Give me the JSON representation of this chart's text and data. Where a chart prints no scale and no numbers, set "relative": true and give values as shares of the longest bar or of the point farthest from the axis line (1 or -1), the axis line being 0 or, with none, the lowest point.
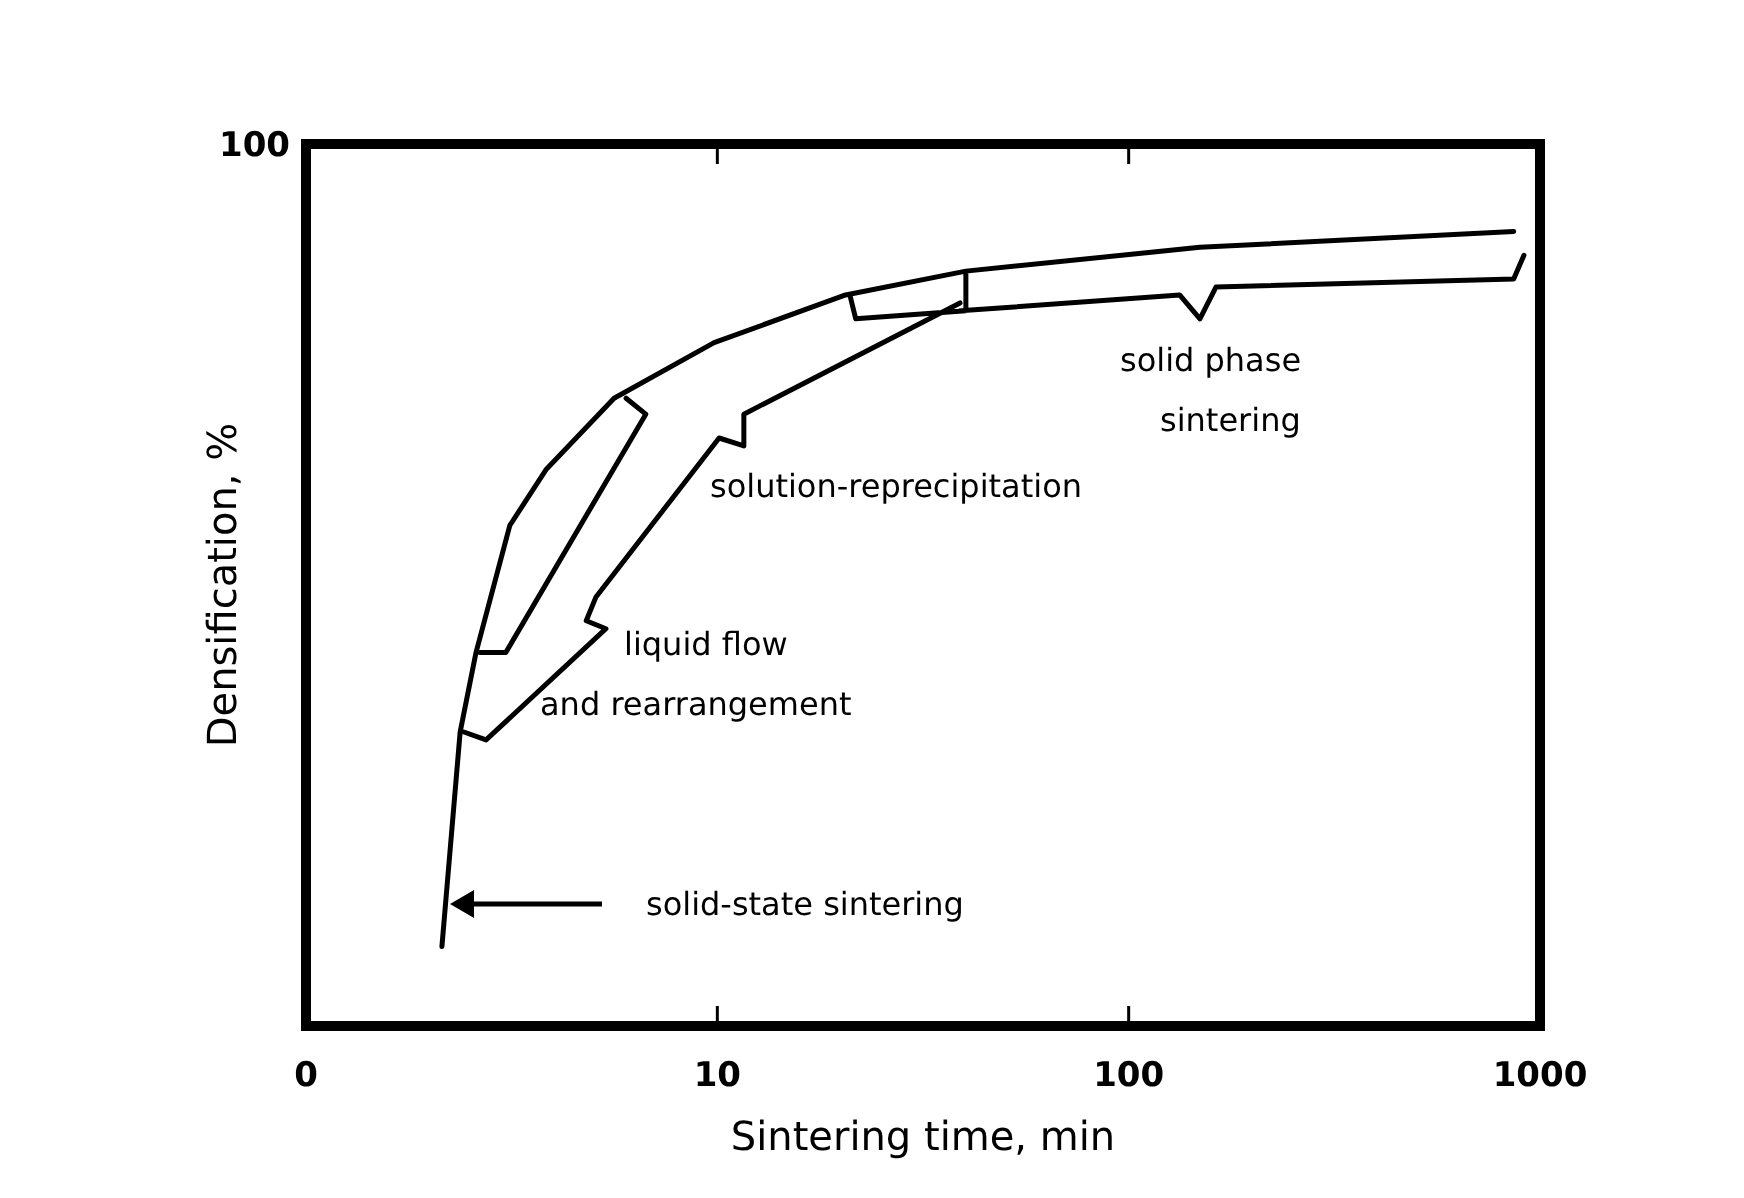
{
  "chart_data": {
    "type": "line",
    "xlabel": "Sintering time, min",
    "ylabel": "Densification, %",
    "log": "x",
    "relative": true,
    "xlim": [
      0,
      1000
    ],
    "xticks": [
      0,
      10,
      100,
      1000
    ],
    "grid": false,
    "marker": "none",
    "line_style": "solid",
    "series": [
      {
        "color": "#000000",
        "x": [
          2.14,
          2.37,
          2.59,
          3.13,
          3.83,
          5.61,
          9.82,
          20.5,
          40.2,
          149,
          863,
          null,
          2.65,
          3.06,
          6.7,
          6.0,
          null,
          2.42,
          2.74,
          5.36,
          4.8,
          5.07,
          10.1,
          11.6,
          11.6,
          38.9,
          null,
          21.0,
          21.7,
          40.2,
          40.2,
          null,
          38.9,
          133,
          149,
          163,
          863,
          914
        ],
        "values": [
          0.1,
          0.37,
          0.47,
          0.63,
          0.7,
          0.79,
          0.86,
          0.92,
          0.95,
          0.98,
          1,
          null,
          0.47,
          0.47,
          0.77,
          0.79,
          null,
          0.37,
          0.36,
          0.5,
          0.51,
          0.54,
          0.74,
          0.73,
          0.77,
          0.91,
          null,
          0.92,
          0.89,
          0.9,
          0.95,
          null,
          0.9,
          0.92,
          0.89,
          0.93,
          0.94,
          0.97
        ]
      }
    ],
    "annotations": [
      "100",
      "solid-state sintering",
      "liquid flow",
      "and rearrangement",
      "solution-reprecipitation",
      "solid phase",
      "sintering"
    ]
  }
}
